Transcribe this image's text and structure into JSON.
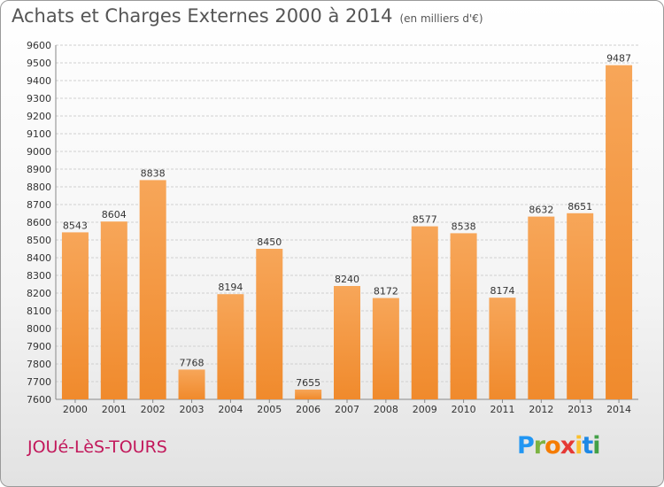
{
  "title": "Achats et Charges Externes 2000 à 2014",
  "subtitle": "(en milliers d'€)",
  "commune": "JOUé-LèS-TOURS",
  "logo": {
    "letters": [
      "P",
      "r",
      "o",
      "x",
      "i",
      "t",
      "i"
    ],
    "colors": [
      "#2196f3",
      "#7cb342",
      "#f57c00",
      "#e53935",
      "#fbc02d",
      "#1e88e5",
      "#43a047"
    ]
  },
  "colors": {
    "bar": "#f08a2c",
    "bar_light": "#f7a659",
    "grid": "#d0d0d0",
    "text": "#333333"
  },
  "chart_data": {
    "type": "bar",
    "title": "Achats et Charges Externes 2000 à 2014",
    "subtitle": "(en milliers d'€)",
    "categories": [
      "2000",
      "2001",
      "2002",
      "2003",
      "2004",
      "2005",
      "2006",
      "2007",
      "2008",
      "2009",
      "2010",
      "2011",
      "2012",
      "2013",
      "2014"
    ],
    "values": [
      8543,
      8604,
      8838,
      7768,
      8194,
      8450,
      7655,
      8240,
      8172,
      8577,
      8538,
      8174,
      8632,
      8651,
      9487
    ],
    "ylim": [
      7600,
      9600
    ],
    "yticks": [
      7600,
      7700,
      7800,
      7900,
      8000,
      8100,
      8200,
      8300,
      8400,
      8500,
      8600,
      8700,
      8800,
      8900,
      9000,
      9100,
      9200,
      9300,
      9400,
      9500,
      9600
    ],
    "grid": true,
    "data_labels": true
  }
}
